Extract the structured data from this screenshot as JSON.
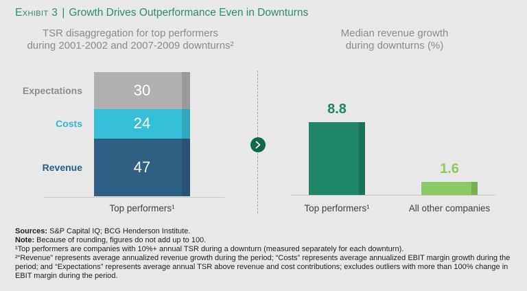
{
  "colors": {
    "background": "#e9e8e8",
    "title_green": "#2e8b6f",
    "subtitle_gray": "#8c8c8c",
    "axis_gray": "#c8c8c8",
    "divider_circle_green": "#0e6b49",
    "segment_value_text": "#ffffff",
    "footnote_text": "#1e1e1e"
  },
  "header": {
    "exhibit_label": "Exhibit 3",
    "separator": "|",
    "title": "Growth Drives Outperformance Even in Downturns"
  },
  "left_panel": {
    "subtitle_line1": "TSR disaggregation for top performers",
    "subtitle_line2": "during 2001-2002 and 2007-2009 downturns²"
  },
  "right_panel": {
    "subtitle_line1": "Median revenue growth",
    "subtitle_line2": "during downturns (%)"
  },
  "chart_data": [
    {
      "type": "bar",
      "subtype": "stacked-single-column",
      "title": "TSR disaggregation for top performers during 2001-2002 and 2007-2009 downturns²",
      "categories": [
        "Top performers¹"
      ],
      "series": [
        {
          "name": "Expectations",
          "values": [
            30
          ],
          "color": "#b1b0b0",
          "label_color": "#8c8c8c"
        },
        {
          "name": "Costs",
          "values": [
            24
          ],
          "color": "#35bfd9",
          "label_color": "#2fb9d4"
        },
        {
          "name": "Revenue",
          "values": [
            47
          ],
          "color": "#2e5f84",
          "label_color": "#255d85"
        }
      ],
      "stack_order_top_to_bottom": [
        "Expectations",
        "Costs",
        "Revenue"
      ],
      "value_labels_shown": true,
      "grid": false,
      "legend": false,
      "note": "Segment values labeled in white inside bar; values sum to 101 due to rounding"
    },
    {
      "type": "bar",
      "title": "Median revenue growth during downturns (%)",
      "categories": [
        "Top performers¹",
        "All other companies"
      ],
      "values": [
        8.8,
        1.6
      ],
      "colors": [
        "#1e8566",
        "#8dc963"
      ],
      "value_labels_shown": true,
      "ylim": [
        0,
        10
      ],
      "grid": false,
      "legend": false
    }
  ],
  "divider": {
    "icon": "chevron-right-in-circle"
  },
  "footnotes": {
    "sources_label": "Sources:",
    "sources_text": " S&P Capital IQ; BCG Henderson Institute.",
    "note_label": "Note:",
    "note_text": " Because of rounding, figures do not add up to 100.",
    "footnote1": "¹Top performers are companies with 10%+ annual TSR during a downturn (measured separately for each downturn).",
    "footnote2": "²“Revenue” represents average annualized revenue growth during the period; “Costs” represents average annualized EBIT margin growth during the period; and “Expectations” represents average annual TSR above revenue and cost contributions; excludes outliers with more than 100% change in EBIT margin during the period."
  }
}
